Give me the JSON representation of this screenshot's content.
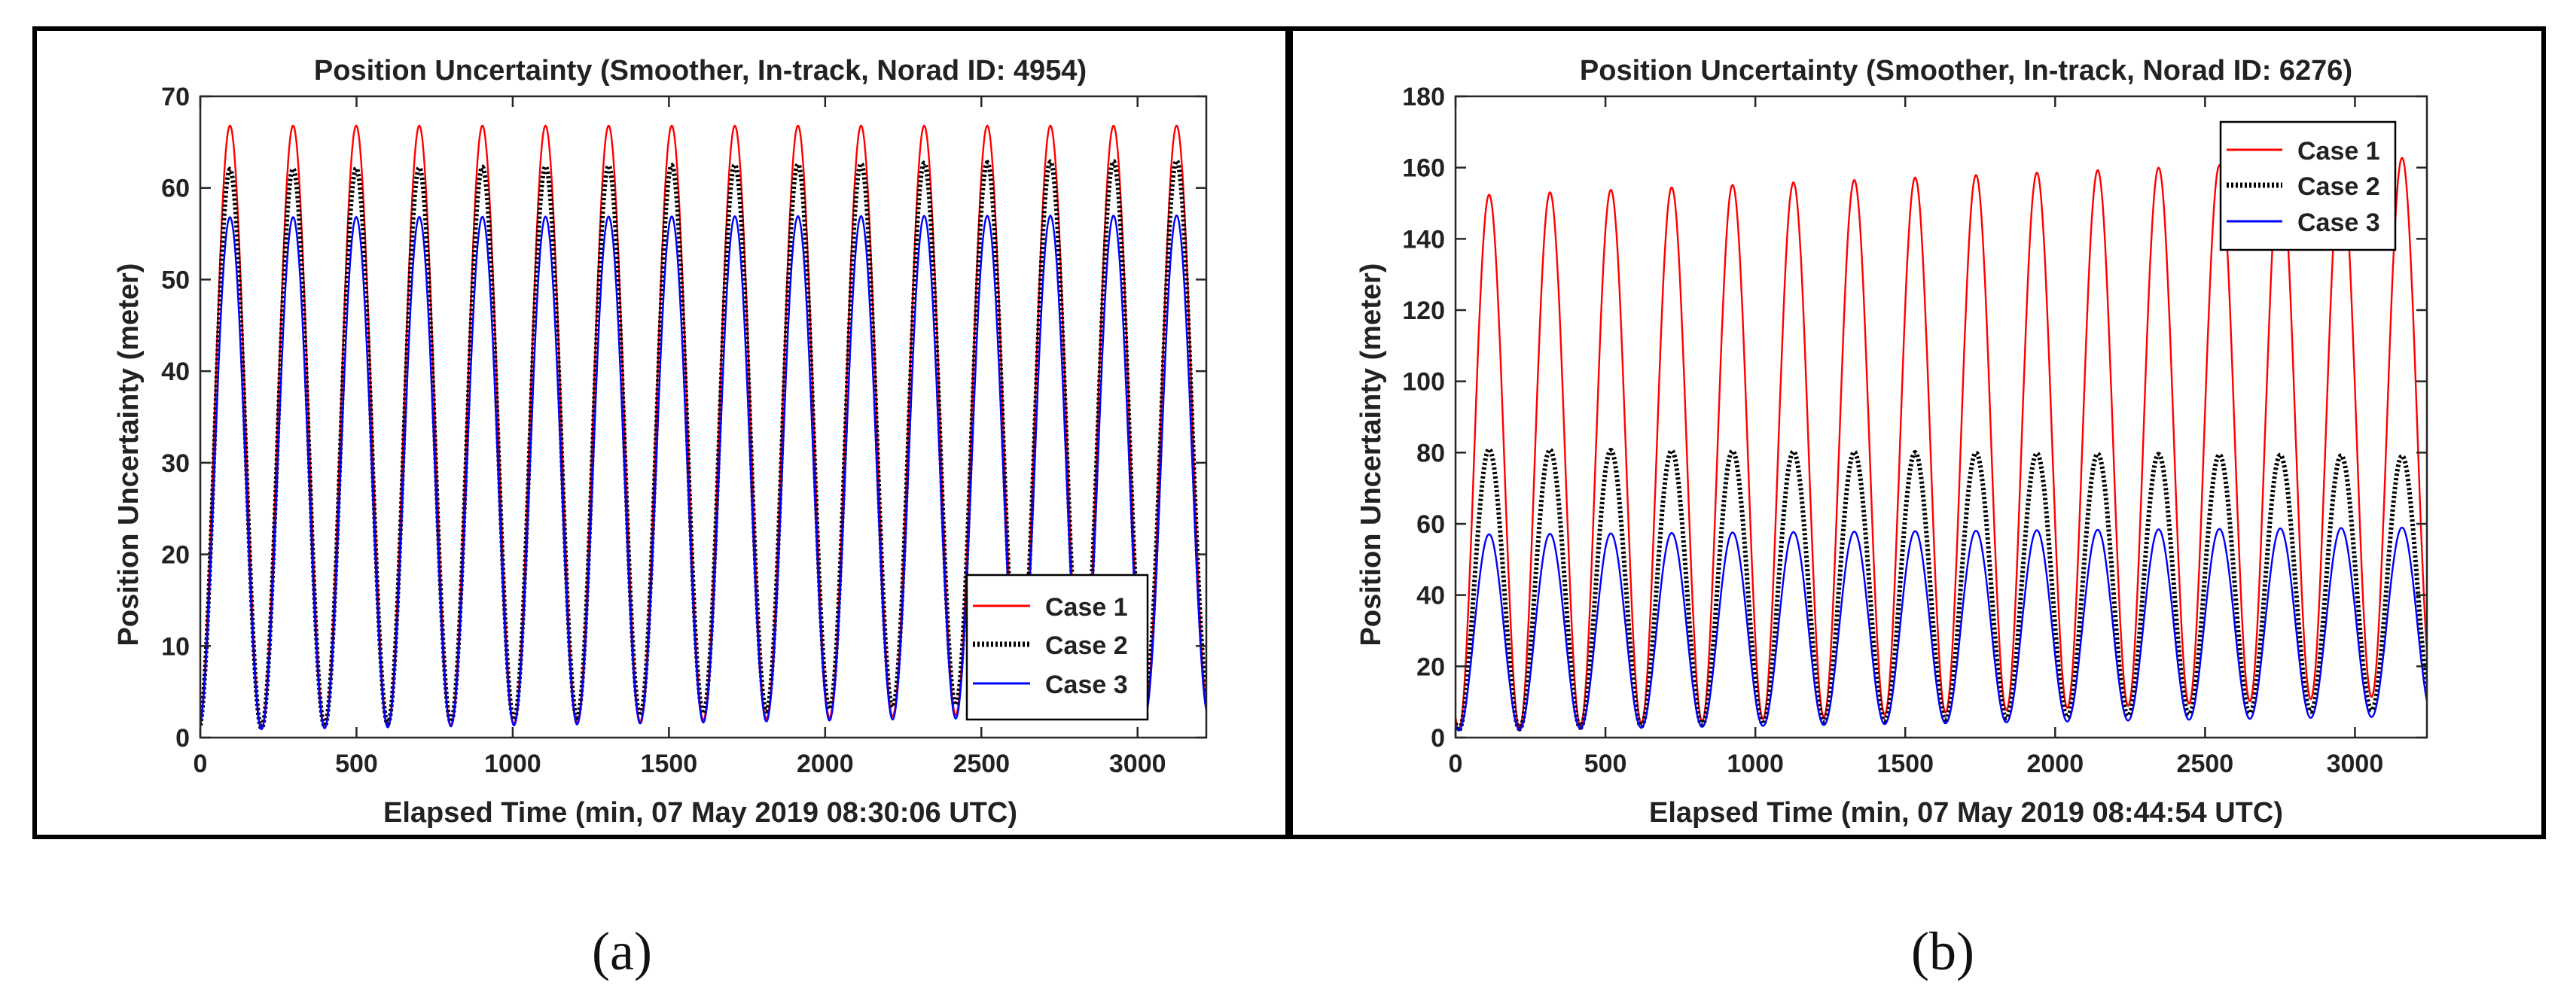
{
  "figure": {
    "background": "#ffffff",
    "frame_color": "#000000",
    "line_colors": {
      "case1": "#ff0000",
      "case2": "#000000",
      "case3": "#0000ff"
    }
  },
  "captions": [
    "(a)",
    "(b)"
  ],
  "chart_data": [
    {
      "type": "line",
      "title": "Position Uncertainty (Smoother, In-track, Norad ID: 4954)",
      "xlabel": "Elapsed Time (min, 07 May 2019 08:30:06 UTC)",
      "ylabel": "Position Uncertainty (meter)",
      "xlim": [
        0,
        3220
      ],
      "ylim": [
        0,
        70
      ],
      "xticks": [
        0,
        500,
        1000,
        1500,
        2000,
        2500,
        3000
      ],
      "yticks": [
        0,
        10,
        20,
        30,
        40,
        50,
        60,
        70
      ],
      "grid": false,
      "legend": "bottom-right",
      "period_min": 202,
      "first_peak_min": 95,
      "series": [
        {
          "name": "Case 1",
          "style": "solid",
          "peak_start": 66.8,
          "peak_end": 66.8,
          "min_start": 0.8,
          "min_end": 3.0
        },
        {
          "name": "Case 2",
          "style": "dotted",
          "peak_start": 62.0,
          "peak_end": 63.0,
          "min_start": 0.8,
          "min_end": 4.5
        },
        {
          "name": "Case 3",
          "style": "solid",
          "peak_start": 56.8,
          "peak_end": 57.0,
          "min_start": 0.8,
          "min_end": 2.5
        }
      ]
    },
    {
      "type": "line",
      "title": "Position Uncertainty (Smoother, In-track, Norad ID: 6276)",
      "xlabel": "Elapsed Time (min, 07 May 2019 08:44:54 UTC)",
      "ylabel": "Position Uncertainty (meter)",
      "xlim": [
        0,
        3240
      ],
      "ylim": [
        0,
        180
      ],
      "xticks": [
        0,
        500,
        1000,
        1500,
        2000,
        2500,
        3000
      ],
      "yticks": [
        0,
        20,
        40,
        60,
        80,
        100,
        120,
        140,
        160,
        180
      ],
      "grid": false,
      "legend": "top-right",
      "period_min": 203,
      "first_peak_min": 112,
      "series": [
        {
          "name": "Case 1",
          "style": "solid",
          "peak_start": 152,
          "peak_end": 163,
          "min_start": 2,
          "min_end": 12
        },
        {
          "name": "Case 2",
          "style": "dotted",
          "peak_start": 81,
          "peak_end": 79,
          "min_start": 2,
          "min_end": 8
        },
        {
          "name": "Case 3",
          "style": "solid",
          "peak_start": 57,
          "peak_end": 59,
          "min_start": 2,
          "min_end": 6
        }
      ]
    }
  ]
}
